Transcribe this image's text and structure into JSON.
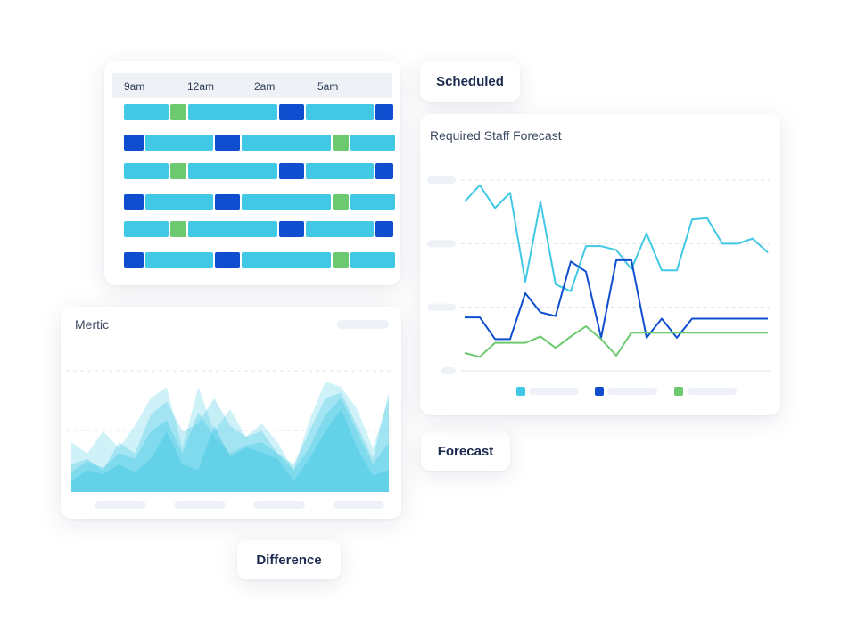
{
  "labels": {
    "scheduled": "Scheduled",
    "forecast": "Forecast",
    "difference": "Difference"
  },
  "colors": {
    "light_blue": "#40c8e5",
    "dark_blue": "#0f4fcf",
    "green": "#6cc96f",
    "skeleton": "#eef2f7"
  },
  "schedule": {
    "time_labels": [
      "9am",
      "12am",
      "2am",
      "5am"
    ],
    "rows": [
      [
        "light",
        "green",
        "light",
        "dark",
        "light",
        "dark"
      ],
      [
        "dark",
        "light",
        "dark",
        "light",
        "green",
        "light"
      ],
      [
        "light",
        "green",
        "light",
        "dark",
        "light",
        "dark"
      ],
      [
        "dark",
        "light",
        "dark",
        "light",
        "green",
        "light"
      ],
      [
        "light",
        "green",
        "light",
        "dark",
        "light",
        "dark"
      ],
      [
        "dark",
        "light",
        "dark",
        "light",
        "green",
        "light"
      ]
    ]
  },
  "metric": {
    "title": "Mertic"
  },
  "chart_data": [
    {
      "type": "line",
      "title": "Required Staff Forecast",
      "x": [
        0,
        1,
        2,
        3,
        4,
        5,
        6,
        7,
        8,
        9,
        10,
        11,
        12,
        13,
        14,
        15,
        16,
        17,
        18,
        19,
        20
      ],
      "series": [
        {
          "color": "#40c8e5",
          "values": [
            2.66,
            2.92,
            2.56,
            2.8,
            1.4,
            2.66,
            1.36,
            1.25,
            1.96,
            1.96,
            1.9,
            1.6,
            2.16,
            1.58,
            1.58,
            2.38,
            2.4,
            2.0,
            2.0,
            2.08,
            1.86
          ]
        },
        {
          "color": "#0f4fcf",
          "values": [
            0.84,
            0.84,
            0.5,
            0.5,
            1.22,
            0.92,
            0.86,
            1.72,
            1.56,
            0.52,
            1.74,
            1.74,
            0.52,
            0.82,
            0.52,
            0.82,
            0.82,
            0.82,
            0.82,
            0.82,
            0.82
          ]
        },
        {
          "color": "#6cc96f",
          "values": [
            0.28,
            0.22,
            0.44,
            0.44,
            0.44,
            0.54,
            0.36,
            0.54,
            0.7,
            0.5,
            0.24,
            0.6,
            0.6,
            0.6,
            0.6,
            0.6,
            0.6,
            0.6,
            0.6,
            0.6,
            0.6
          ]
        }
      ],
      "grid": true
    },
    {
      "type": "area",
      "title": "Mertic",
      "series": [
        {
          "opacity": 0.25,
          "values": [
            0.45,
            0.35,
            0.55,
            0.4,
            0.6,
            0.85,
            0.95,
            0.4,
            0.95,
            0.55,
            0.75,
            0.5,
            0.62,
            0.45,
            0.2,
            0.65,
            1.0,
            0.95,
            0.75,
            0.4,
            0.85
          ]
        },
        {
          "opacity": 0.3,
          "values": [
            0.25,
            0.3,
            0.2,
            0.45,
            0.35,
            0.7,
            0.82,
            0.55,
            0.62,
            0.85,
            0.6,
            0.5,
            0.55,
            0.35,
            0.25,
            0.55,
            0.85,
            0.9,
            0.6,
            0.3,
            0.9
          ]
        },
        {
          "opacity": 0.35,
          "values": [
            0.18,
            0.28,
            0.22,
            0.35,
            0.3,
            0.55,
            0.65,
            0.35,
            0.72,
            0.5,
            0.35,
            0.42,
            0.45,
            0.35,
            0.2,
            0.4,
            0.7,
            0.85,
            0.55,
            0.25,
            0.45
          ]
        },
        {
          "opacity": 0.45,
          "values": [
            0.1,
            0.2,
            0.16,
            0.25,
            0.18,
            0.3,
            0.55,
            0.25,
            0.2,
            0.6,
            0.32,
            0.4,
            0.36,
            0.3,
            0.1,
            0.3,
            0.55,
            0.75,
            0.4,
            0.15,
            0.2
          ]
        }
      ],
      "grid": true
    }
  ]
}
